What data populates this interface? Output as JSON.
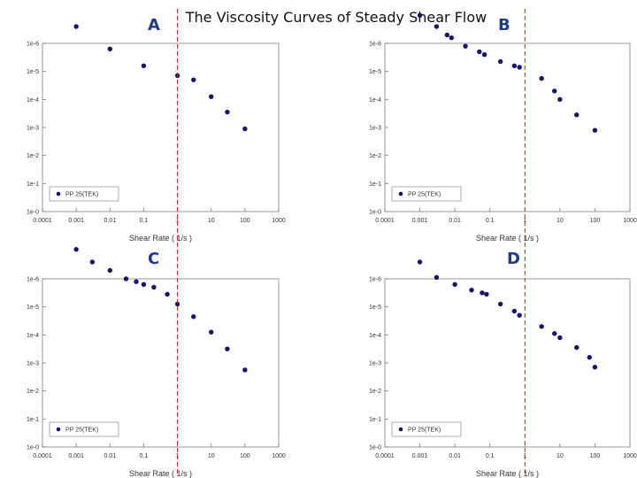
{
  "title": "The Viscosity Curves of Steady Shear Flow",
  "chart_data": [
    {
      "id": "A",
      "type": "scatter",
      "letter": "A",
      "xlabel": "Shear Rate ( 1/s )",
      "xticks": [
        "0.0001",
        "0.001",
        "0.01",
        "0.1",
        "1",
        "10",
        "100",
        "1000"
      ],
      "yticks": [
        "1e-6",
        "1e-5",
        "1e-4",
        "1e-3",
        "1e-2",
        "1e-1",
        "1e-0"
      ],
      "legend": "PP 25(TEK)",
      "reference_x": 1,
      "series": [
        {
          "name": "PP 25(TEK)",
          "x": [
            0.001,
            0.01,
            0.1,
            1,
            3,
            10,
            30,
            100
          ],
          "y": [
            6.6,
            5.8,
            5.2,
            4.85,
            4.7,
            4.1,
            3.55,
            2.95
          ]
        }
      ]
    },
    {
      "id": "B",
      "type": "scatter",
      "letter": "B",
      "xlabel": "Shear Rate ( 1/s )",
      "xticks": [
        "0.0001",
        "0.001",
        "0.01",
        "0.1",
        "1",
        "10",
        "100",
        "1000"
      ],
      "yticks": [
        "1e-6",
        "1e-5",
        "1e-4",
        "1e-3",
        "1e-2",
        "1e-1",
        "1e-0"
      ],
      "legend": "PP 25(TEK)",
      "reference_x": 1,
      "series": [
        {
          "name": "PP 25(TEK)",
          "x": [
            0.001,
            0.003,
            0.006,
            0.008,
            0.02,
            0.05,
            0.07,
            0.2,
            0.5,
            0.7,
            3,
            7,
            10,
            30,
            100
          ],
          "y": [
            7.0,
            6.6,
            6.3,
            6.2,
            5.9,
            5.7,
            5.6,
            5.35,
            5.2,
            5.15,
            4.75,
            4.3,
            4.0,
            3.45,
            2.9
          ]
        }
      ]
    },
    {
      "id": "C",
      "type": "scatter",
      "letter": "C",
      "xlabel": "Shear Rate ( 1/s )",
      "xticks": [
        "0.0001",
        "0.001",
        "0.01",
        "0.1",
        "1",
        "10",
        "100",
        "1000"
      ],
      "yticks": [
        "1e-6",
        "1e-5",
        "1e-4",
        "1e-3",
        "1e-2",
        "1e-1",
        "1e-0"
      ],
      "legend": "PP 25(TEK)",
      "reference_x": 1,
      "series": [
        {
          "name": "PP 25(TEK)",
          "x": [
            0.001,
            0.003,
            0.01,
            0.03,
            0.06,
            0.1,
            0.2,
            0.5,
            1,
            3,
            10,
            30,
            100
          ],
          "y": [
            7.05,
            6.6,
            6.3,
            6.0,
            5.9,
            5.8,
            5.7,
            5.45,
            5.1,
            4.65,
            4.1,
            3.5,
            2.75
          ]
        }
      ]
    },
    {
      "id": "D",
      "type": "scatter",
      "letter": "D",
      "xlabel": "Shear Rate ( 1/s )",
      "xticks": [
        "0.0001",
        "0.001",
        "0.01",
        "0.1",
        "1",
        "10",
        "100",
        "1000"
      ],
      "yticks": [
        "1e-6",
        "1e-5",
        "1e-4",
        "1e-3",
        "1e-2",
        "1e-1",
        "1e-0"
      ],
      "legend": "PP 25(TEK)",
      "reference_x": 1,
      "series": [
        {
          "name": "PP 25(TEK)",
          "x": [
            0.001,
            0.003,
            0.01,
            0.03,
            0.06,
            0.08,
            0.2,
            0.5,
            0.7,
            3,
            7,
            10,
            30,
            70,
            100
          ],
          "y": [
            6.6,
            6.05,
            5.8,
            5.6,
            5.5,
            5.45,
            5.1,
            4.85,
            4.7,
            4.3,
            4.05,
            3.9,
            3.55,
            3.2,
            2.85
          ]
        }
      ]
    }
  ]
}
